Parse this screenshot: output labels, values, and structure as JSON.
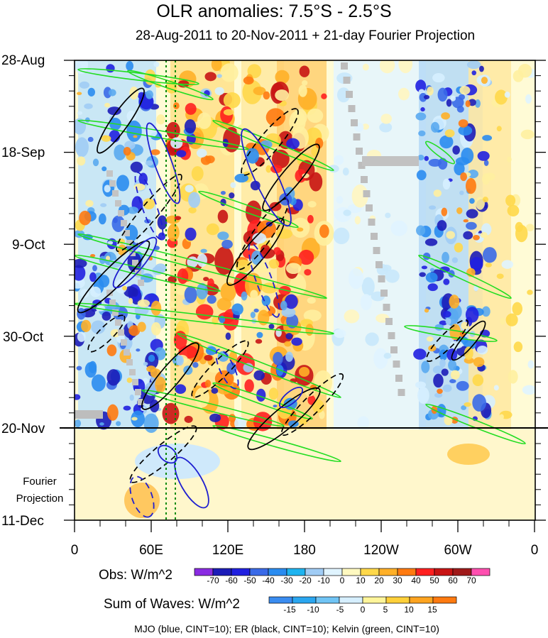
{
  "title": "OLR anomalies: 7.5°S - 2.5°S",
  "subtitle": "28-Aug-2011 to 20-Nov-2011 + 21-day Fourier Projection",
  "y_ticks": [
    "28-Aug",
    "18-Sep",
    "9-Oct",
    "30-Oct",
    "20-Nov",
    "11-Dec"
  ],
  "x_ticks": [
    "0",
    "60E",
    "120E",
    "180",
    "120W",
    "60W",
    "0"
  ],
  "fourier_label_line1": "Fourier",
  "fourier_label_line2": "Projection",
  "obs_label": "Obs: W/m^2",
  "obs_ticks": [
    "-70",
    "-60",
    "-50",
    "-40",
    "-30",
    "-20",
    "-10",
    "0",
    "10",
    "20",
    "30",
    "40",
    "50",
    "60",
    "70"
  ],
  "obs_colors": [
    "#8a2be2",
    "#1c1cb8",
    "#2020e0",
    "#3a6ae8",
    "#2a8cf0",
    "#1eb4f0",
    "#a0ccf5",
    "#e0f4ff",
    "#fff9c0",
    "#ffd84a",
    "#ffb028",
    "#ff7a10",
    "#ff2020",
    "#c81414",
    "#a01a1a",
    "#ff4fb0"
  ],
  "wave_label": "Sum of Waves: W/m^2",
  "wave_ticks": [
    "-15",
    "-10",
    "-5",
    "0",
    "5",
    "10",
    "15"
  ],
  "wave_colors": [
    "#3a8cf0",
    "#2aa6f0",
    "#70c4f5",
    "#d6efff",
    "#fff59a",
    "#ffd03a",
    "#ffa420",
    "#ff7a10"
  ],
  "note": "MJO (blue, CINT=10); ER (black, CINT=10); Kelvin (green, CINT=10)",
  "colors": {
    "mjo": "#1f1fd0",
    "er": "#000000",
    "kelvin": "#22dd22",
    "dotted": "#008800"
  },
  "chart_data": {
    "type": "heatmap",
    "title": "OLR anomalies: 7.5°S - 2.5°S",
    "subtitle": "28-Aug-2011 to 20-Nov-2011 + 21-day Fourier Projection",
    "x_axis": "longitude",
    "x_range": [
      "0",
      "0 (360)"
    ],
    "y_axis": "date",
    "y_range": [
      "28-Aug-2011",
      "11-Dec-2011"
    ],
    "y_direction": "time increases downward",
    "projection_start": "20-Nov-2011",
    "projection_length_days": 21,
    "observed_contour_levels": [
      -70,
      -60,
      -50,
      -40,
      -30,
      -20,
      -10,
      0,
      10,
      20,
      30,
      40,
      50,
      60,
      70
    ],
    "wave_contour_levels": [
      -15,
      -10,
      -5,
      0,
      5,
      10,
      15
    ],
    "overlays": [
      "MJO (blue, CINT=10)",
      "ER (black, CINT=10)",
      "Kelvin (green, CINT=10)"
    ]
  }
}
